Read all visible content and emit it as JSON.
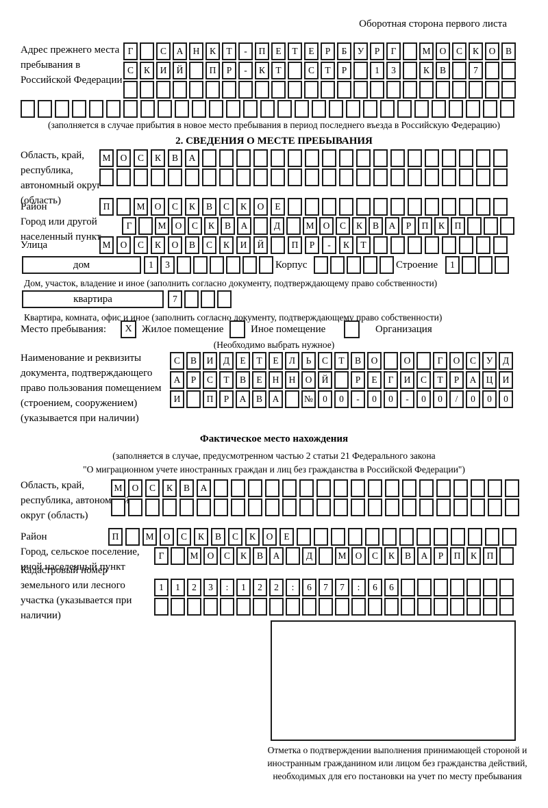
{
  "page": {
    "header_note": "Оборотная сторона первого листа"
  },
  "section1": {
    "label": "Адрес прежнего места пребывания в Российской Федерации",
    "rows": [
      {
        "cells": 24,
        "value": "Г САНКТ-ПЕТЕРБУРГ МОСКОВ"
      },
      {
        "cells": 24,
        "value": "СКИЙ ПР-КТ СТР 13 КВ 7"
      },
      {
        "cells": 24,
        "value": ""
      },
      {
        "cells": 29,
        "value": ""
      }
    ],
    "caption": "(заполняется в случае прибытия в новое место пребывания в период последнего въезда в Российскую Федерацию)"
  },
  "section2": {
    "title": "2. СВЕДЕНИЯ О МЕСТЕ ПРЕБЫВАНИЯ",
    "region": {
      "label": "Область, край, республика, автономный округ (область)",
      "rows": [
        {
          "cells": 24,
          "value": "МОСКВА"
        },
        {
          "cells": 24,
          "value": ""
        }
      ]
    },
    "district": {
      "label": "Район",
      "rows": [
        {
          "cells": 24,
          "value": "П МОСКВСКОЕ"
        }
      ]
    },
    "city": {
      "label": "Город или другой населенный пункт",
      "rows": [
        {
          "cells": 24,
          "value": "Г МОСКВА Д МОСКВАРПКП"
        }
      ]
    },
    "street": {
      "label": "Улица",
      "rows": [
        {
          "cells": 24,
          "value": "МОСКОВСКИЙ ПР-КТ"
        }
      ]
    },
    "house": {
      "box_label": "дом",
      "house_row": {
        "cells": 8,
        "value": "13"
      },
      "korpus_label": "Корпус",
      "korpus_row": {
        "cells": 5,
        "value": ""
      },
      "stroenie_label": "Строение",
      "stroenie_row": {
        "cells": 4,
        "value": "1"
      },
      "caption": "Дом, участок, владение и иное (заполнить согласно документу, подтверждающему право собственности)"
    },
    "apartment": {
      "box_label": "квартира",
      "row": {
        "cells": 4,
        "value": "7"
      },
      "caption": "Квартира, комната, офис и иное (заполнить согласно документу, подтверждающему право собственности)"
    },
    "stay": {
      "label": "Место пребывания:",
      "options": [
        {
          "label": "Жилое помещение",
          "mark": "X"
        },
        {
          "label": "Иное помещение",
          "mark": ""
        },
        {
          "label": "Организация",
          "mark": ""
        }
      ],
      "note": "(Необходимо выбрать нужное)"
    },
    "doc": {
      "label": "Наименование и реквизиты документа, подтверждающего право пользования помещением (строением, сооружением) (указывается при наличии)",
      "rows": [
        {
          "cells": 21,
          "value": "СВИДЕТЕЛЬСТВО О ГОСУД"
        },
        {
          "cells": 21,
          "value": "АРСТВЕННОЙ РЕГИСТРАЦИ"
        },
        {
          "cells": 21,
          "value": "И ПРАВА №00-00-00/000"
        }
      ]
    }
  },
  "actual": {
    "title": "Фактическое место нахождения",
    "caption_line1": "(заполняется в случае, предусмотренном частью 2 статьи 21 Федерального закона",
    "caption_line2": "\"О миграционном учете иностранных граждан и лиц без гражданства в Российской Федерации\")",
    "region": {
      "label": "Область, край, республика, автономный округ (область)",
      "rows": [
        {
          "cells": 24,
          "value": "МОСКВА"
        },
        {
          "cells": 24,
          "value": ""
        }
      ]
    },
    "district": {
      "label": "Район",
      "rows": [
        {
          "cells": 24,
          "value": "П МОСКВСКОЕ"
        }
      ]
    },
    "city": {
      "label": "Город, сельское поселение, иной населенный пункт",
      "rows": [
        {
          "cells": 22,
          "value": "Г МОСКВА Д МОСКВАРПКП"
        }
      ]
    },
    "cadastral": {
      "label": "Кадастровый номер земельного или лесного участка (указывается при наличии)",
      "rows": [
        {
          "cells": 22,
          "value": "1123:122:677:66"
        },
        {
          "cells": 22,
          "value": ""
        }
      ]
    },
    "stamp_caption": "Отметка о подтверждении выполнения принимающей стороной и иностранным гражданином или лицом без гражданства действий, необходимых для его постановки на учет по месту пребывания"
  }
}
